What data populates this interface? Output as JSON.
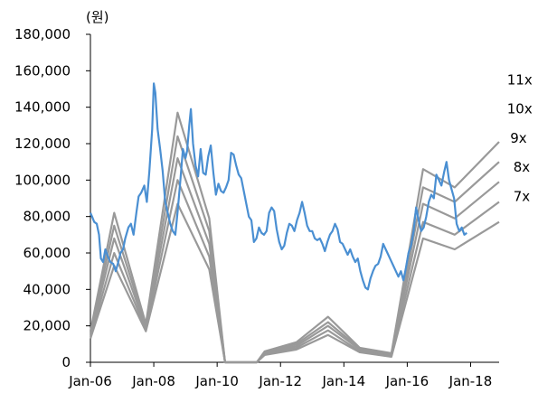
{
  "chart_data": {
    "type": "line",
    "unit_label": "(원)",
    "title": "",
    "xlabel": "",
    "ylabel": "",
    "x_tick_labels": [
      "Jan-06",
      "Jan-08",
      "Jan-10",
      "Jan-12",
      "Jan-14",
      "Jan-16",
      "Jan-18"
    ],
    "x_tick_values": [
      2006,
      2008,
      2010,
      2012,
      2014,
      2016,
      2018
    ],
    "xlim": [
      2006,
      2018.9
    ],
    "ylim": [
      0,
      180000
    ],
    "y_ticks": [
      0,
      20000,
      40000,
      60000,
      80000,
      100000,
      120000,
      140000,
      160000,
      180000
    ],
    "y_tick_labels": [
      "0",
      "20,000",
      "40,000",
      "60,000",
      "80,000",
      "100,000",
      "120,000",
      "140,000",
      "160,000",
      "180,000"
    ],
    "colors": {
      "price": "#4a8fd2",
      "band": "#999999"
    },
    "band_series": [
      {
        "name": "11x",
        "points": [
          [
            2006,
            17000
          ],
          [
            2006.75,
            82000
          ],
          [
            2007.75,
            21000
          ],
          [
            2008.75,
            137000
          ],
          [
            2009.75,
            79000
          ],
          [
            2010.25,
            0
          ],
          [
            2011.25,
            0
          ],
          [
            2011.5,
            6000
          ],
          [
            2012.5,
            11000
          ],
          [
            2013.5,
            25000
          ],
          [
            2014.5,
            8000
          ],
          [
            2015.5,
            5000
          ],
          [
            2016.5,
            106000
          ],
          [
            2017.5,
            96000
          ],
          [
            2018.9,
            121000
          ]
        ]
      },
      {
        "name": "10x",
        "points": [
          [
            2006,
            16000
          ],
          [
            2006.75,
            75000
          ],
          [
            2007.75,
            20000
          ],
          [
            2008.75,
            124000
          ],
          [
            2009.75,
            72000
          ],
          [
            2010.25,
            0
          ],
          [
            2011.25,
            0
          ],
          [
            2011.5,
            5500
          ],
          [
            2012.5,
            10000
          ],
          [
            2013.5,
            22000
          ],
          [
            2014.5,
            7500
          ],
          [
            2015.5,
            4500
          ],
          [
            2016.5,
            96000
          ],
          [
            2017.5,
            88000
          ],
          [
            2018.9,
            110000
          ]
        ]
      },
      {
        "name": "9x",
        "points": [
          [
            2006,
            15000
          ],
          [
            2006.75,
            68000
          ],
          [
            2007.75,
            19000
          ],
          [
            2008.75,
            112000
          ],
          [
            2009.75,
            65000
          ],
          [
            2010.25,
            0
          ],
          [
            2011.25,
            0
          ],
          [
            2011.5,
            5000
          ],
          [
            2012.5,
            9000
          ],
          [
            2013.5,
            20000
          ],
          [
            2014.5,
            7000
          ],
          [
            2015.5,
            4000
          ],
          [
            2016.5,
            87000
          ],
          [
            2017.5,
            79000
          ],
          [
            2018.9,
            99000
          ]
        ]
      },
      {
        "name": "8x",
        "points": [
          [
            2006,
            14000
          ],
          [
            2006.75,
            60000
          ],
          [
            2007.75,
            18000
          ],
          [
            2008.75,
            100000
          ],
          [
            2009.75,
            58000
          ],
          [
            2010.25,
            0
          ],
          [
            2011.25,
            0
          ],
          [
            2011.5,
            4500
          ],
          [
            2012.5,
            8000
          ],
          [
            2013.5,
            17500
          ],
          [
            2014.5,
            6000
          ],
          [
            2015.5,
            3500
          ],
          [
            2016.5,
            77000
          ],
          [
            2017.5,
            70000
          ],
          [
            2018.9,
            88000
          ]
        ]
      },
      {
        "name": "7x",
        "points": [
          [
            2006,
            13000
          ],
          [
            2006.75,
            53000
          ],
          [
            2007.75,
            17000
          ],
          [
            2008.75,
            87000
          ],
          [
            2009.75,
            51000
          ],
          [
            2010.25,
            0
          ],
          [
            2011.25,
            0
          ],
          [
            2011.5,
            4000
          ],
          [
            2012.5,
            7000
          ],
          [
            2013.5,
            15000
          ],
          [
            2014.5,
            5500
          ],
          [
            2015.5,
            3000
          ],
          [
            2016.5,
            68000
          ],
          [
            2017.5,
            62000
          ],
          [
            2018.9,
            77000
          ]
        ]
      }
    ],
    "price_series": {
      "name": "",
      "points": [
        [
          2006.0,
          82000
        ],
        [
          2006.05,
          80000
        ],
        [
          2006.12,
          77000
        ],
        [
          2006.2,
          76000
        ],
        [
          2006.27,
          70000
        ],
        [
          2006.33,
          57000
        ],
        [
          2006.4,
          55000
        ],
        [
          2006.47,
          62000
        ],
        [
          2006.55,
          58000
        ],
        [
          2006.63,
          55000
        ],
        [
          2006.72,
          54000
        ],
        [
          2006.8,
          50000
        ],
        [
          2006.88,
          55000
        ],
        [
          2006.95,
          60000
        ],
        [
          2007.03,
          62000
        ],
        [
          2007.1,
          68000
        ],
        [
          2007.2,
          74000
        ],
        [
          2007.28,
          76000
        ],
        [
          2007.36,
          70000
        ],
        [
          2007.45,
          82000
        ],
        [
          2007.52,
          91000
        ],
        [
          2007.6,
          93000
        ],
        [
          2007.7,
          97000
        ],
        [
          2007.78,
          88000
        ],
        [
          2007.86,
          105000
        ],
        [
          2007.95,
          128000
        ],
        [
          2008.0,
          153000
        ],
        [
          2008.05,
          148000
        ],
        [
          2008.12,
          128000
        ],
        [
          2008.2,
          117000
        ],
        [
          2008.28,
          105000
        ],
        [
          2008.36,
          88000
        ],
        [
          2008.44,
          82000
        ],
        [
          2008.52,
          76000
        ],
        [
          2008.6,
          72000
        ],
        [
          2008.68,
          70000
        ],
        [
          2008.76,
          84000
        ],
        [
          2008.84,
          100000
        ],
        [
          2008.92,
          117000
        ],
        [
          2009.0,
          112000
        ],
        [
          2009.05,
          116000
        ],
        [
          2009.12,
          130000
        ],
        [
          2009.17,
          139000
        ],
        [
          2009.24,
          120000
        ],
        [
          2009.32,
          108000
        ],
        [
          2009.4,
          102000
        ],
        [
          2009.48,
          117000
        ],
        [
          2009.56,
          104000
        ],
        [
          2009.64,
          103000
        ],
        [
          2009.72,
          113000
        ],
        [
          2009.8,
          119000
        ],
        [
          2009.88,
          104000
        ],
        [
          2009.96,
          92000
        ],
        [
          2010.04,
          98000
        ],
        [
          2010.12,
          94000
        ],
        [
          2010.2,
          93000
        ],
        [
          2010.28,
          96000
        ],
        [
          2010.36,
          100000
        ],
        [
          2010.44,
          115000
        ],
        [
          2010.52,
          114000
        ],
        [
          2010.6,
          108000
        ],
        [
          2010.68,
          103000
        ],
        [
          2010.76,
          101000
        ],
        [
          2010.84,
          94000
        ],
        [
          2010.92,
          87000
        ],
        [
          2011.0,
          80000
        ],
        [
          2011.08,
          78000
        ],
        [
          2011.16,
          66000
        ],
        [
          2011.24,
          68000
        ],
        [
          2011.32,
          74000
        ],
        [
          2011.4,
          71000
        ],
        [
          2011.48,
          70000
        ],
        [
          2011.56,
          72000
        ],
        [
          2011.64,
          82000
        ],
        [
          2011.72,
          85000
        ],
        [
          2011.8,
          83000
        ],
        [
          2011.88,
          73000
        ],
        [
          2011.96,
          66000
        ],
        [
          2012.04,
          62000
        ],
        [
          2012.12,
          64000
        ],
        [
          2012.2,
          71000
        ],
        [
          2012.28,
          76000
        ],
        [
          2012.36,
          75000
        ],
        [
          2012.44,
          72000
        ],
        [
          2012.52,
          78000
        ],
        [
          2012.6,
          82000
        ],
        [
          2012.68,
          88000
        ],
        [
          2012.76,
          82000
        ],
        [
          2012.84,
          75000
        ],
        [
          2012.92,
          72000
        ],
        [
          2013.0,
          72000
        ],
        [
          2013.08,
          68000
        ],
        [
          2013.16,
          67000
        ],
        [
          2013.24,
          68000
        ],
        [
          2013.32,
          65000
        ],
        [
          2013.4,
          61000
        ],
        [
          2013.48,
          66000
        ],
        [
          2013.56,
          70000
        ],
        [
          2013.64,
          72000
        ],
        [
          2013.72,
          76000
        ],
        [
          2013.8,
          73000
        ],
        [
          2013.88,
          66000
        ],
        [
          2013.96,
          65000
        ],
        [
          2014.04,
          62000
        ],
        [
          2014.12,
          59000
        ],
        [
          2014.2,
          62000
        ],
        [
          2014.28,
          58000
        ],
        [
          2014.36,
          55000
        ],
        [
          2014.44,
          57000
        ],
        [
          2014.52,
          50000
        ],
        [
          2014.6,
          45000
        ],
        [
          2014.68,
          41000
        ],
        [
          2014.76,
          40000
        ],
        [
          2014.84,
          46000
        ],
        [
          2014.92,
          50000
        ],
        [
          2015.0,
          53000
        ],
        [
          2015.08,
          54000
        ],
        [
          2015.16,
          58000
        ],
        [
          2015.24,
          65000
        ],
        [
          2015.32,
          62000
        ],
        [
          2015.4,
          59000
        ],
        [
          2015.48,
          56000
        ],
        [
          2015.56,
          53000
        ],
        [
          2015.64,
          50000
        ],
        [
          2015.72,
          47000
        ],
        [
          2015.8,
          50000
        ],
        [
          2015.88,
          45000
        ],
        [
          2015.96,
          52000
        ],
        [
          2016.04,
          60000
        ],
        [
          2016.12,
          64000
        ],
        [
          2016.2,
          72000
        ],
        [
          2016.28,
          85000
        ],
        [
          2016.36,
          78000
        ],
        [
          2016.44,
          72000
        ],
        [
          2016.52,
          74000
        ],
        [
          2016.6,
          80000
        ],
        [
          2016.68,
          88000
        ],
        [
          2016.76,
          92000
        ],
        [
          2016.84,
          90000
        ],
        [
          2016.92,
          103000
        ],
        [
          2017.0,
          100000
        ],
        [
          2017.08,
          97000
        ],
        [
          2017.16,
          104000
        ],
        [
          2017.24,
          110000
        ],
        [
          2017.32,
          100000
        ],
        [
          2017.4,
          95000
        ],
        [
          2017.48,
          90000
        ],
        [
          2017.56,
          76000
        ],
        [
          2017.64,
          72000
        ],
        [
          2017.72,
          74000
        ],
        [
          2017.8,
          70000
        ],
        [
          2017.88,
          71000
        ]
      ]
    }
  }
}
